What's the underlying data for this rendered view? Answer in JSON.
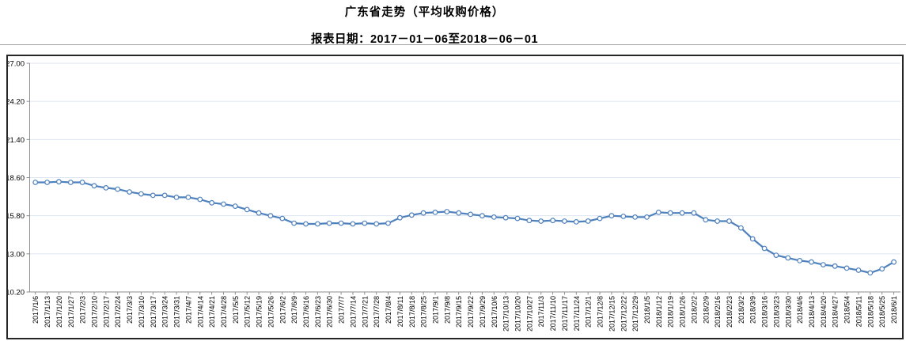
{
  "header": {
    "title": "广东省走势（平均收购价格）",
    "subtitle": "报表日期：2017－01－06至2018－06－01"
  },
  "chart_data": {
    "type": "line",
    "title": "广东省走势（平均收购价格）",
    "xlabel": "",
    "ylabel": "",
    "ylim": [
      10.2,
      27.0
    ],
    "ytick_labels": [
      "27.00",
      "24.20",
      "21.40",
      "18.60",
      "15.80",
      "13.00",
      "10.20"
    ],
    "grid": "horizontal",
    "legend": "none",
    "line_color": "#4F81BD",
    "marker_fill": "#FFFFFF",
    "grid_color": "#DCE4F0",
    "axis_color": "#8E8E8E",
    "x": [
      "2017/1/6",
      "2017/1/13",
      "2017/1/20",
      "2017/1/27",
      "2017/2/3",
      "2017/2/10",
      "2017/2/17",
      "2017/2/24",
      "2017/3/3",
      "2017/3/10",
      "2017/3/17",
      "2017/3/24",
      "2017/3/31",
      "2017/4/7",
      "2017/4/14",
      "2017/4/21",
      "2017/4/28",
      "2017/5/5",
      "2017/5/12",
      "2017/5/19",
      "2017/5/26",
      "2017/6/2",
      "2017/6/9",
      "2017/6/16",
      "2017/6/23",
      "2017/6/30",
      "2017/7/7",
      "2017/7/14",
      "2017/7/21",
      "2017/7/28",
      "2017/8/4",
      "2017/8/11",
      "2017/8/18",
      "2017/8/25",
      "2017/9/1",
      "2017/9/8",
      "2017/9/15",
      "2017/9/22",
      "2017/9/29",
      "2017/10/6",
      "2017/10/13",
      "2017/10/20",
      "2017/10/27",
      "2017/11/3",
      "2017/11/10",
      "2017/11/17",
      "2017/11/24",
      "2017/12/1",
      "2017/12/8",
      "2017/12/15",
      "2017/12/22",
      "2017/12/29",
      "2018/1/5",
      "2018/1/12",
      "2018/1/19",
      "2018/1/26",
      "2018/2/2",
      "2018/2/9",
      "2018/2/16",
      "2018/2/23",
      "2018/3/2",
      "2018/3/9",
      "2018/3/16",
      "2018/3/23",
      "2018/3/30",
      "2018/4/6",
      "2018/4/13",
      "2018/4/20",
      "2018/4/27",
      "2018/5/4",
      "2018/5/11",
      "2018/5/18",
      "2018/5/25",
      "2018/6/1"
    ],
    "values": [
      18.25,
      18.25,
      18.3,
      18.25,
      18.25,
      18.0,
      17.85,
      17.75,
      17.55,
      17.4,
      17.3,
      17.3,
      17.15,
      17.15,
      17.0,
      16.75,
      16.65,
      16.5,
      16.25,
      16.0,
      15.8,
      15.6,
      15.25,
      15.2,
      15.2,
      15.25,
      15.25,
      15.2,
      15.25,
      15.2,
      15.25,
      15.65,
      15.85,
      16.0,
      16.05,
      16.1,
      16.0,
      15.9,
      15.8,
      15.7,
      15.65,
      15.6,
      15.45,
      15.4,
      15.45,
      15.4,
      15.35,
      15.4,
      15.6,
      15.8,
      15.75,
      15.7,
      15.7,
      16.05,
      16.0,
      16.0,
      16.0,
      15.5,
      15.4,
      15.4,
      14.9,
      14.1,
      13.4,
      12.9,
      12.7,
      12.5,
      12.4,
      12.2,
      12.1,
      11.95,
      11.8,
      11.6,
      11.9,
      12.4
    ]
  }
}
